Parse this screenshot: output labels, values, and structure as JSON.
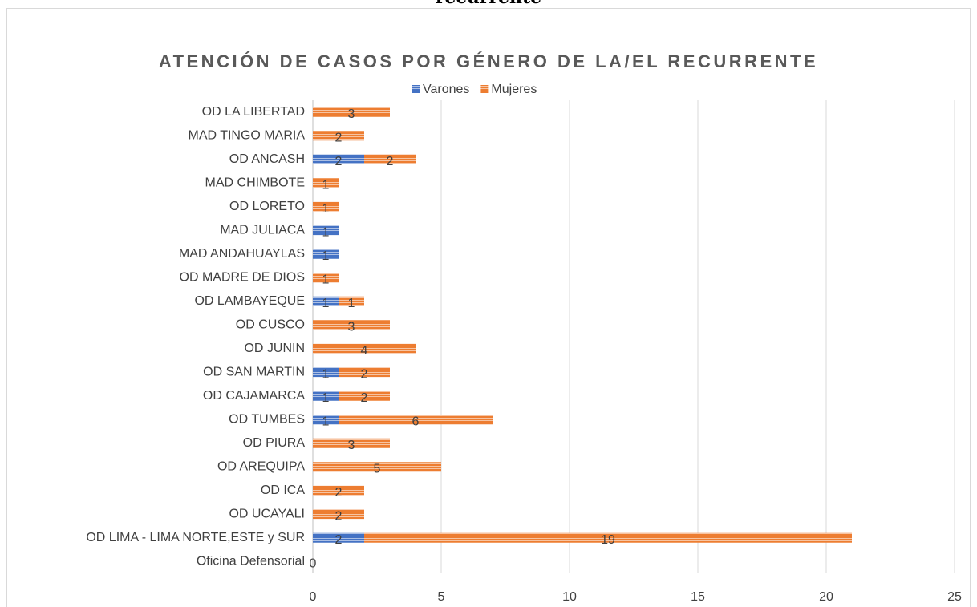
{
  "header_text": "recurrente",
  "chart_data": {
    "type": "stacked_barh",
    "title": "ATENCIÓN DE CASOS POR GÉNERO DE LA/EL RECURRENTE",
    "categories": [
      "OD LA LIBERTAD",
      "MAD TINGO MARIA",
      "OD ANCASH",
      "MAD CHIMBOTE",
      "OD LORETO",
      "MAD JULIACA",
      "MAD ANDAHUAYLAS",
      "OD MADRE DE DIOS",
      "OD LAMBAYEQUE",
      "OD CUSCO",
      "OD JUNIN",
      "OD SAN MARTIN",
      "OD CAJAMARCA",
      "OD TUMBES",
      "OD PIURA",
      "OD AREQUIPA",
      "OD ICA",
      "OD UCAYALI",
      "OD LIMA - LIMA NORTE,ESTE y SUR",
      "Oficina Defensorial"
    ],
    "series": [
      {
        "name": "Varones",
        "color": "#4472c4",
        "values": [
          null,
          null,
          2,
          null,
          null,
          1,
          1,
          null,
          1,
          null,
          null,
          1,
          1,
          1,
          null,
          null,
          null,
          null,
          2,
          0
        ]
      },
      {
        "name": "Mujeres",
        "color": "#ed7d31",
        "values": [
          3,
          2,
          2,
          1,
          1,
          null,
          null,
          1,
          1,
          3,
          4,
          2,
          2,
          6,
          3,
          5,
          2,
          2,
          19,
          null
        ]
      }
    ],
    "xlim": [
      0,
      25
    ],
    "xticks": [
      0,
      5,
      10,
      15,
      20,
      25
    ],
    "grid": true,
    "legend": "top"
  }
}
